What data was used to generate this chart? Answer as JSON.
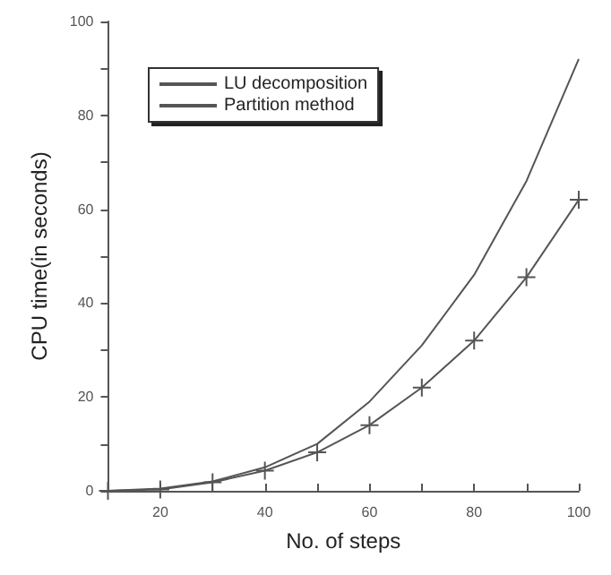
{
  "chart_data": {
    "type": "line",
    "xlabel": "No. of steps",
    "ylabel": "CPU time(in seconds)",
    "xlim": [
      10,
      100
    ],
    "xticks": [
      20,
      {
        "value": 30,
        "label": null
      },
      40,
      {
        "value": 50,
        "label": null
      },
      60,
      {
        "value": 70,
        "label": null
      },
      80,
      {
        "value": 90,
        "label": null
      },
      100
    ],
    "ylim": [
      0,
      100
    ],
    "yticks": [
      0,
      {
        "value": 10,
        "label": null
      },
      20,
      {
        "value": 30,
        "label": null
      },
      40,
      {
        "value": 50,
        "label": null
      },
      60,
      {
        "value": 70,
        "label": null
      },
      80,
      {
        "value": 90,
        "label": null
      },
      100
    ],
    "x": [
      10,
      20,
      30,
      40,
      50,
      60,
      70,
      80,
      90,
      100
    ],
    "grid": false,
    "legend": "top left",
    "line_style": "solid",
    "series": [
      {
        "name": "LU decomposition",
        "color": "#555555",
        "marker": "none",
        "values": [
          0,
          0.5,
          2,
          5,
          10,
          19,
          31,
          46,
          66,
          92
        ]
      },
      {
        "name": "Partition method",
        "color": "#555555",
        "marker": "cross",
        "values": [
          0,
          0.3,
          1.8,
          4.3,
          8.2,
          14,
          22,
          32,
          45.5,
          62
        ]
      }
    ]
  }
}
